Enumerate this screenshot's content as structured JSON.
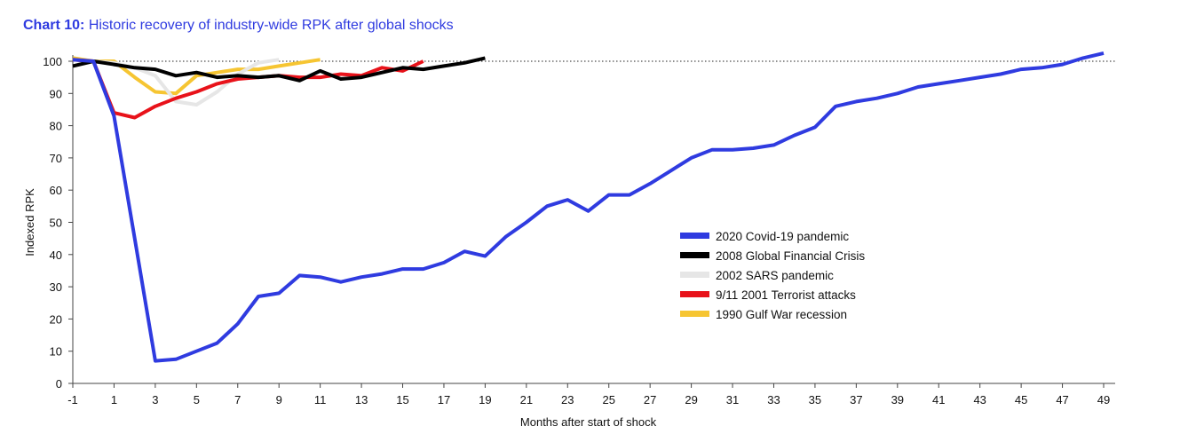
{
  "title": {
    "prefix": "Chart 10:",
    "text": "Historic recovery of industry-wide RPK after global shocks"
  },
  "chart_data": {
    "type": "line",
    "title": "Chart 10: Historic recovery of industry-wide RPK after global shocks",
    "xlabel": "Months after start of shock",
    "ylabel": "Indexed RPK",
    "xlim": [
      -1,
      50
    ],
    "ylim": [
      0,
      100
    ],
    "x_ticks": [
      -1,
      1,
      3,
      5,
      7,
      9,
      11,
      13,
      15,
      17,
      19,
      21,
      23,
      25,
      27,
      29,
      31,
      33,
      35,
      37,
      39,
      41,
      43,
      45,
      47,
      49
    ],
    "y_ticks": [
      0,
      10,
      20,
      30,
      40,
      50,
      60,
      70,
      80,
      90,
      100
    ],
    "reference_line": {
      "y": 100,
      "style": "dotted"
    },
    "grid": false,
    "legend_position": "right-middle",
    "series": [
      {
        "name": "1990 Gulf War recession",
        "color": "#f6c532",
        "x": [
          -1,
          0,
          1,
          2,
          3,
          4,
          5,
          6,
          7,
          8,
          9,
          10,
          11
        ],
        "values": [
          101,
          100,
          100,
          95,
          90.5,
          90,
          95.5,
          96.5,
          97.5,
          97.5,
          98.5,
          99.5,
          100.5
        ]
      },
      {
        "name": "2002 SARS pandemic",
        "color": "#e6e6e6",
        "x": [
          -1,
          0,
          1,
          2,
          3,
          4,
          5,
          6,
          7,
          8,
          9
        ],
        "values": [
          100.5,
          100,
          99.5,
          98,
          95.5,
          87.5,
          86.5,
          90.5,
          96,
          99.5,
          100.5
        ]
      },
      {
        "name": "9/11 2001 Terrorist attacks",
        "color": "#e8121a",
        "x": [
          -1,
          0,
          1,
          2,
          3,
          4,
          5,
          6,
          7,
          8,
          9,
          10,
          11,
          12,
          13,
          14,
          15,
          16
        ],
        "values": [
          100.5,
          100,
          84,
          82.5,
          86,
          88.5,
          90.5,
          93,
          94.5,
          95,
          95.5,
          95,
          95,
          96,
          95.5,
          98,
          97,
          100
        ]
      },
      {
        "name": "2008 Global Financial Crisis",
        "color": "#000000",
        "x": [
          -1,
          0,
          1,
          2,
          3,
          4,
          5,
          6,
          7,
          8,
          9,
          10,
          11,
          12,
          13,
          14,
          15,
          16,
          17,
          18,
          19
        ],
        "values": [
          98.5,
          100,
          99,
          98,
          97.5,
          95.5,
          96.5,
          95,
          95.5,
          95,
          95.5,
          94,
          97,
          94.5,
          95,
          96.5,
          98,
          97.5,
          98.5,
          99.5,
          101
        ]
      },
      {
        "name": "2020 Covid-19 pandemic",
        "color": "#2f3be0",
        "x": [
          -1,
          0,
          1,
          2,
          3,
          4,
          5,
          6,
          7,
          8,
          9,
          10,
          11,
          12,
          13,
          14,
          15,
          16,
          17,
          18,
          19,
          20,
          21,
          22,
          23,
          24,
          25,
          26,
          27,
          28,
          29,
          30,
          31,
          32,
          33,
          34,
          35,
          36,
          37,
          38,
          39,
          40,
          41,
          42,
          43,
          44,
          45,
          46,
          47,
          48,
          49
        ],
        "values": [
          100.5,
          100,
          83,
          45,
          7,
          7.5,
          10,
          12.5,
          18.5,
          27,
          28,
          33.5,
          33,
          31.5,
          33,
          34,
          35.5,
          35.5,
          37.5,
          41,
          39.5,
          45.5,
          50,
          55,
          57,
          53.5,
          58.5,
          58.5,
          62,
          66,
          70,
          72.5,
          72.5,
          73,
          74,
          77,
          79.5,
          86,
          87.5,
          88.5,
          90,
          92,
          93,
          94,
          95,
          96,
          97.5,
          98,
          99,
          101,
          102.5
        ]
      }
    ],
    "legend_order": [
      "2020 Covid-19 pandemic",
      "2008 Global Financial Crisis",
      "2002 SARS pandemic",
      "9/11 2001 Terrorist attacks",
      "1990 Gulf War recession"
    ]
  }
}
